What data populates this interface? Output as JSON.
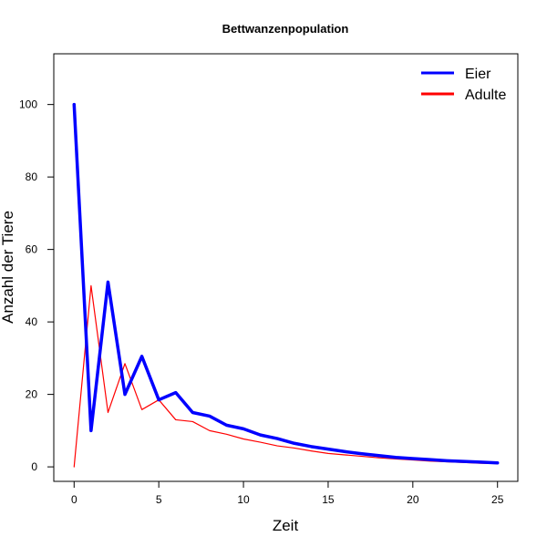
{
  "chart_data": {
    "type": "line",
    "title": "Bettwanzenpopulation",
    "xlabel": "Zeit",
    "ylabel": "Anzahl der Tiere",
    "xlim": [
      -1.2,
      26.2
    ],
    "ylim": [
      -4,
      114
    ],
    "xticks": [
      0,
      5,
      10,
      15,
      20,
      25
    ],
    "yticks": [
      0,
      20,
      40,
      60,
      80,
      100
    ],
    "grid": false,
    "legend_position": "top-right",
    "x": [
      0,
      1,
      2,
      3,
      4,
      5,
      6,
      7,
      8,
      9,
      10,
      11,
      12,
      13,
      14,
      15,
      16,
      17,
      18,
      19,
      20,
      21,
      22,
      23,
      24,
      25
    ],
    "series": [
      {
        "name": "Eier",
        "color": "#0000ff",
        "line_width": "thick",
        "values": [
          100,
          10,
          51,
          20,
          30.5,
          18.5,
          20.5,
          15,
          14,
          11.5,
          10.5,
          8.8,
          7.8,
          6.5,
          5.6,
          4.9,
          4.2,
          3.6,
          3.1,
          2.6,
          2.3,
          2.0,
          1.7,
          1.5,
          1.3,
          1.1
        ]
      },
      {
        "name": "Adulte",
        "color": "#ff0000",
        "line_width": "thin",
        "values": [
          0,
          50,
          15,
          28.5,
          15.8,
          18.5,
          13,
          12.5,
          10,
          9,
          7.7,
          6.8,
          5.8,
          5.2,
          4.4,
          3.7,
          3.3,
          2.9,
          2.5,
          2.2,
          1.9,
          1.6,
          1.4,
          1.2,
          1.0,
          0.9
        ]
      }
    ]
  }
}
